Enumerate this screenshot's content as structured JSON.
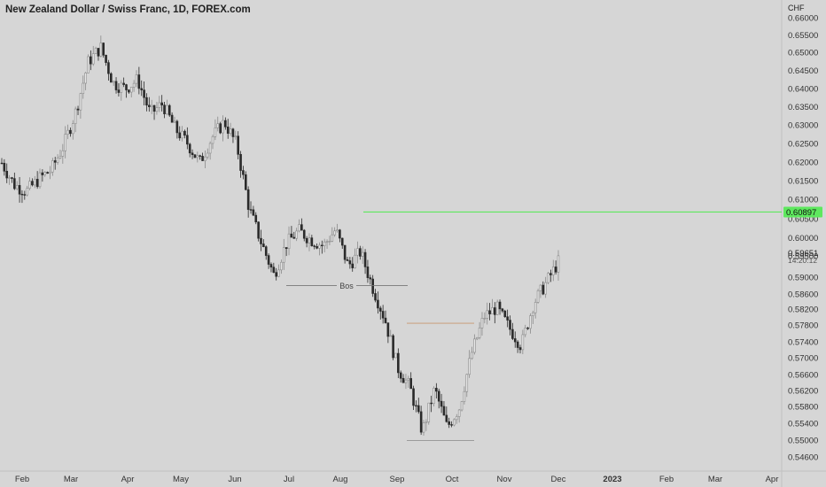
{
  "header": {
    "title": "New Zealand Dollar / Swiss Franc, 1D, FOREX.com"
  },
  "axis": {
    "currency": "CHF",
    "price_ticks": [
      "0.66000",
      "0.65500",
      "0.65000",
      "0.64500",
      "0.64000",
      "0.63500",
      "0.63000",
      "0.62500",
      "0.62000",
      "0.61500",
      "0.61000",
      "0.60500",
      "0.60000",
      "0.59500",
      "0.59000",
      "0.58600",
      "0.58200",
      "0.57800",
      "0.57400",
      "0.57000",
      "0.56600",
      "0.56200",
      "0.55800",
      "0.55400",
      "0.55000",
      "0.54600"
    ],
    "time_ticks": [
      {
        "label": "Feb",
        "bold": false
      },
      {
        "label": "Mar",
        "bold": false
      },
      {
        "label": "Apr",
        "bold": false
      },
      {
        "label": "May",
        "bold": false
      },
      {
        "label": "Jun",
        "bold": false
      },
      {
        "label": "Jul",
        "bold": false
      },
      {
        "label": "Aug",
        "bold": false
      },
      {
        "label": "Sep",
        "bold": false
      },
      {
        "label": "Oct",
        "bold": false
      },
      {
        "label": "Nov",
        "bold": false
      },
      {
        "label": "Dec",
        "bold": false
      },
      {
        "label": "2023",
        "bold": true
      },
      {
        "label": "Feb",
        "bold": false
      },
      {
        "label": "Mar",
        "bold": false
      },
      {
        "label": "Apr",
        "bold": false
      }
    ]
  },
  "markers": {
    "level_line": {
      "price": 0.60897,
      "label": "0.60897",
      "color": "#5ee85e"
    },
    "last_price": {
      "label": "0.59651",
      "countdown": "14:20:12"
    }
  },
  "annotations": {
    "bos": {
      "text": "Bos",
      "price": 0.5906,
      "from": "Jul",
      "to": "Sep"
    },
    "orange_line": {
      "price": 0.5812,
      "color": "#c8966e"
    },
    "low_line": {
      "price": 0.5519
    }
  },
  "colors": {
    "background": "#d6d6d6",
    "candle": "#8a8a8a",
    "candle_dark": "#2a2a2a",
    "text": "#222222"
  },
  "chart_data": {
    "type": "candlestick",
    "title": "New Zealand Dollar / Swiss Franc, 1D, FOREX.com",
    "ylabel": "CHF",
    "ylim": [
      0.5443,
      0.6619
    ],
    "x": [
      "Feb",
      "Mar",
      "Apr",
      "May",
      "Jun",
      "Jul",
      "Aug",
      "Sep",
      "Oct",
      "Nov",
      "Dec"
    ],
    "close_path": [
      0.6212,
      0.6158,
      0.6141,
      0.6172,
      0.6195,
      0.6255,
      0.6342,
      0.6465,
      0.6501,
      0.6412,
      0.6398,
      0.642,
      0.6335,
      0.636,
      0.6298,
      0.6262,
      0.6213,
      0.6276,
      0.6315,
      0.6257,
      0.6098,
      0.6012,
      0.5932,
      0.601,
      0.6043,
      0.6021,
      0.6005,
      0.6046,
      0.5955,
      0.599,
      0.5901,
      0.582,
      0.5701,
      0.5652,
      0.5541,
      0.5648,
      0.5552,
      0.5602,
      0.5738,
      0.5829,
      0.5851,
      0.5802,
      0.5756,
      0.5862,
      0.5912,
      0.5965
    ]
  }
}
